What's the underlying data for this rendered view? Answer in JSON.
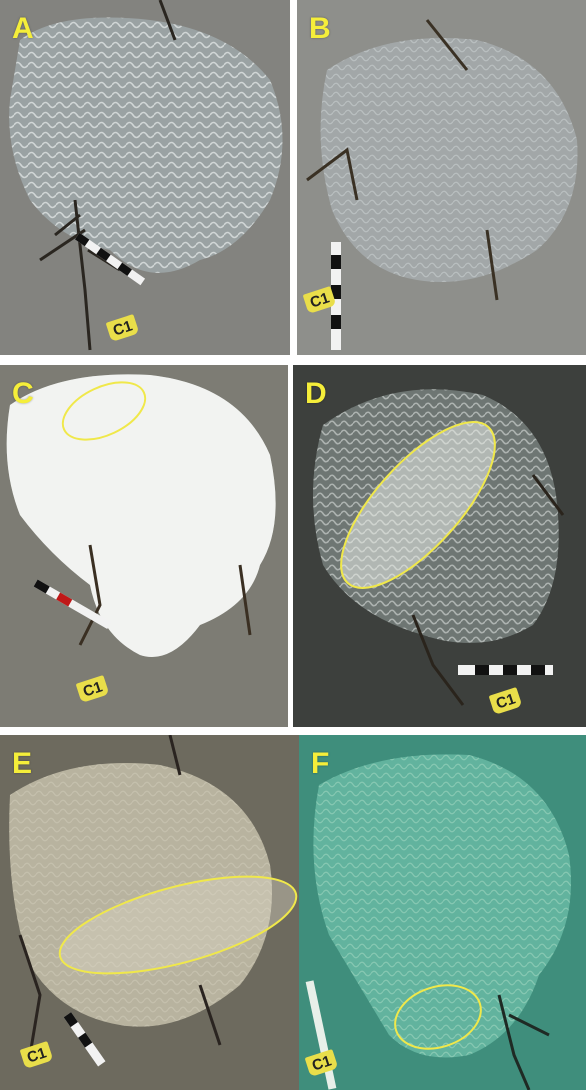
{
  "panels": [
    {
      "id": "A",
      "label": "A",
      "tag": "C1",
      "highlight": false
    },
    {
      "id": "B",
      "label": "B",
      "tag": "C1",
      "highlight": false
    },
    {
      "id": "C",
      "label": "C",
      "tag": "C1",
      "highlight": true
    },
    {
      "id": "D",
      "label": "D",
      "tag": "C1",
      "highlight": true
    },
    {
      "id": "E",
      "label": "E",
      "tag": "C1",
      "highlight": true
    },
    {
      "id": "F",
      "label": "F",
      "tag": "C1",
      "highlight": true
    }
  ],
  "colors": {
    "label": "#f5ee3a",
    "highlight_ellipse": "#f0e84a",
    "tag": "#e9de4a"
  }
}
